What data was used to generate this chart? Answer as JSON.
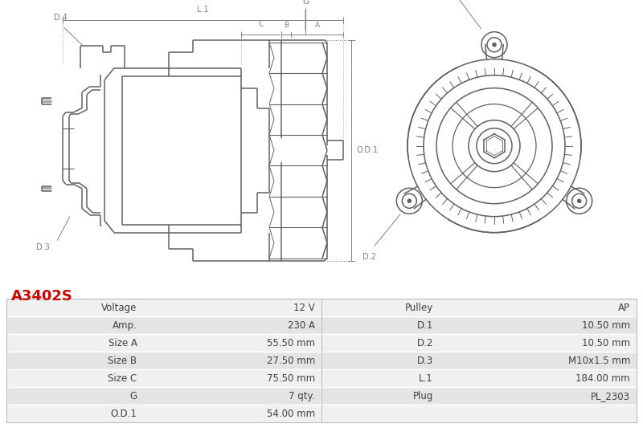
{
  "title": "A3402S",
  "title_color": "#cc0000",
  "background_color": "#ffffff",
  "table_rows": [
    [
      "Voltage",
      "12 V",
      "Pulley",
      "AP"
    ],
    [
      "Amp.",
      "230 A",
      "D.1",
      "10.50 mm"
    ],
    [
      "Size A",
      "55.50 mm",
      "D.2",
      "10.50 mm"
    ],
    [
      "Size B",
      "27.50 mm",
      "D.3",
      "M10x1.5 mm"
    ],
    [
      "Size C",
      "75.50 mm",
      "L.1",
      "184.00 mm"
    ],
    [
      "G",
      "7 qty.",
      "Plug",
      "PL_2303"
    ],
    [
      "O.D.1",
      "54.00 mm",
      "",
      ""
    ]
  ],
  "lc": "#606060",
  "lc_dim": "#808080",
  "table_bg_odd": "#f0f0f0",
  "table_bg_even": "#e4e4e4",
  "text_color": "#404040"
}
